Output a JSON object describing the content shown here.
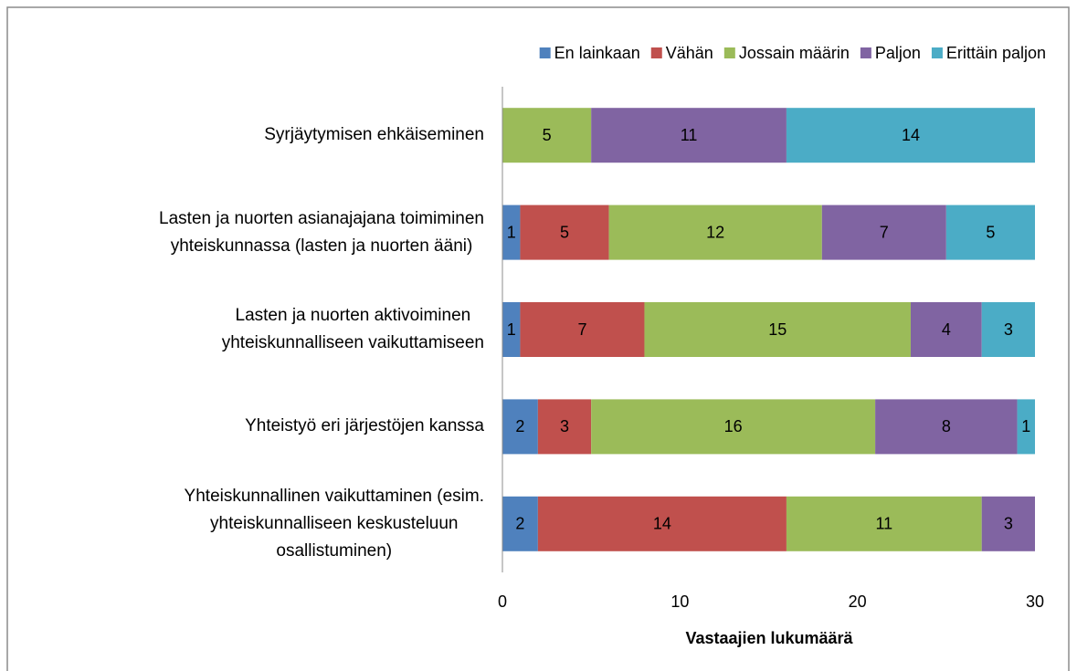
{
  "chart_data": {
    "type": "stacked-bar-horizontal",
    "x_label": "Vastaajien lukumäärä",
    "categories": [
      "Syrjäytymisen ehkäiseminen",
      "Lasten ja nuorten asianajajana toimiminen\nyhteiskunnassa (lasten ja nuorten ääni)",
      "Lasten ja nuorten aktivoiminen\nyhteiskunnalliseen vaikuttamiseen",
      "Yhteistyö eri järjestöjen kanssa",
      "Yhteiskunnallinen vaikuttaminen (esim.\nyhteiskunnalliseen keskusteluun\nosallistuminen)"
    ],
    "series": [
      {
        "name": "En lainkaan",
        "color": "#4f81bd",
        "values": [
          0,
          1,
          1,
          2,
          2
        ]
      },
      {
        "name": "Vähän",
        "color": "#c0504d",
        "values": [
          0,
          5,
          7,
          3,
          14
        ]
      },
      {
        "name": "Jossain määrin",
        "color": "#9bbb59",
        "values": [
          5,
          12,
          15,
          16,
          11
        ]
      },
      {
        "name": "Paljon",
        "color": "#8064a2",
        "values": [
          11,
          7,
          4,
          8,
          3
        ]
      },
      {
        "name": "Erittäin paljon",
        "color": "#4bacc6",
        "values": [
          14,
          5,
          3,
          1,
          0
        ]
      }
    ],
    "xlim": [
      0,
      30
    ],
    "xticks": [
      0,
      10,
      20,
      30
    ],
    "grid": false,
    "legend": "top"
  }
}
